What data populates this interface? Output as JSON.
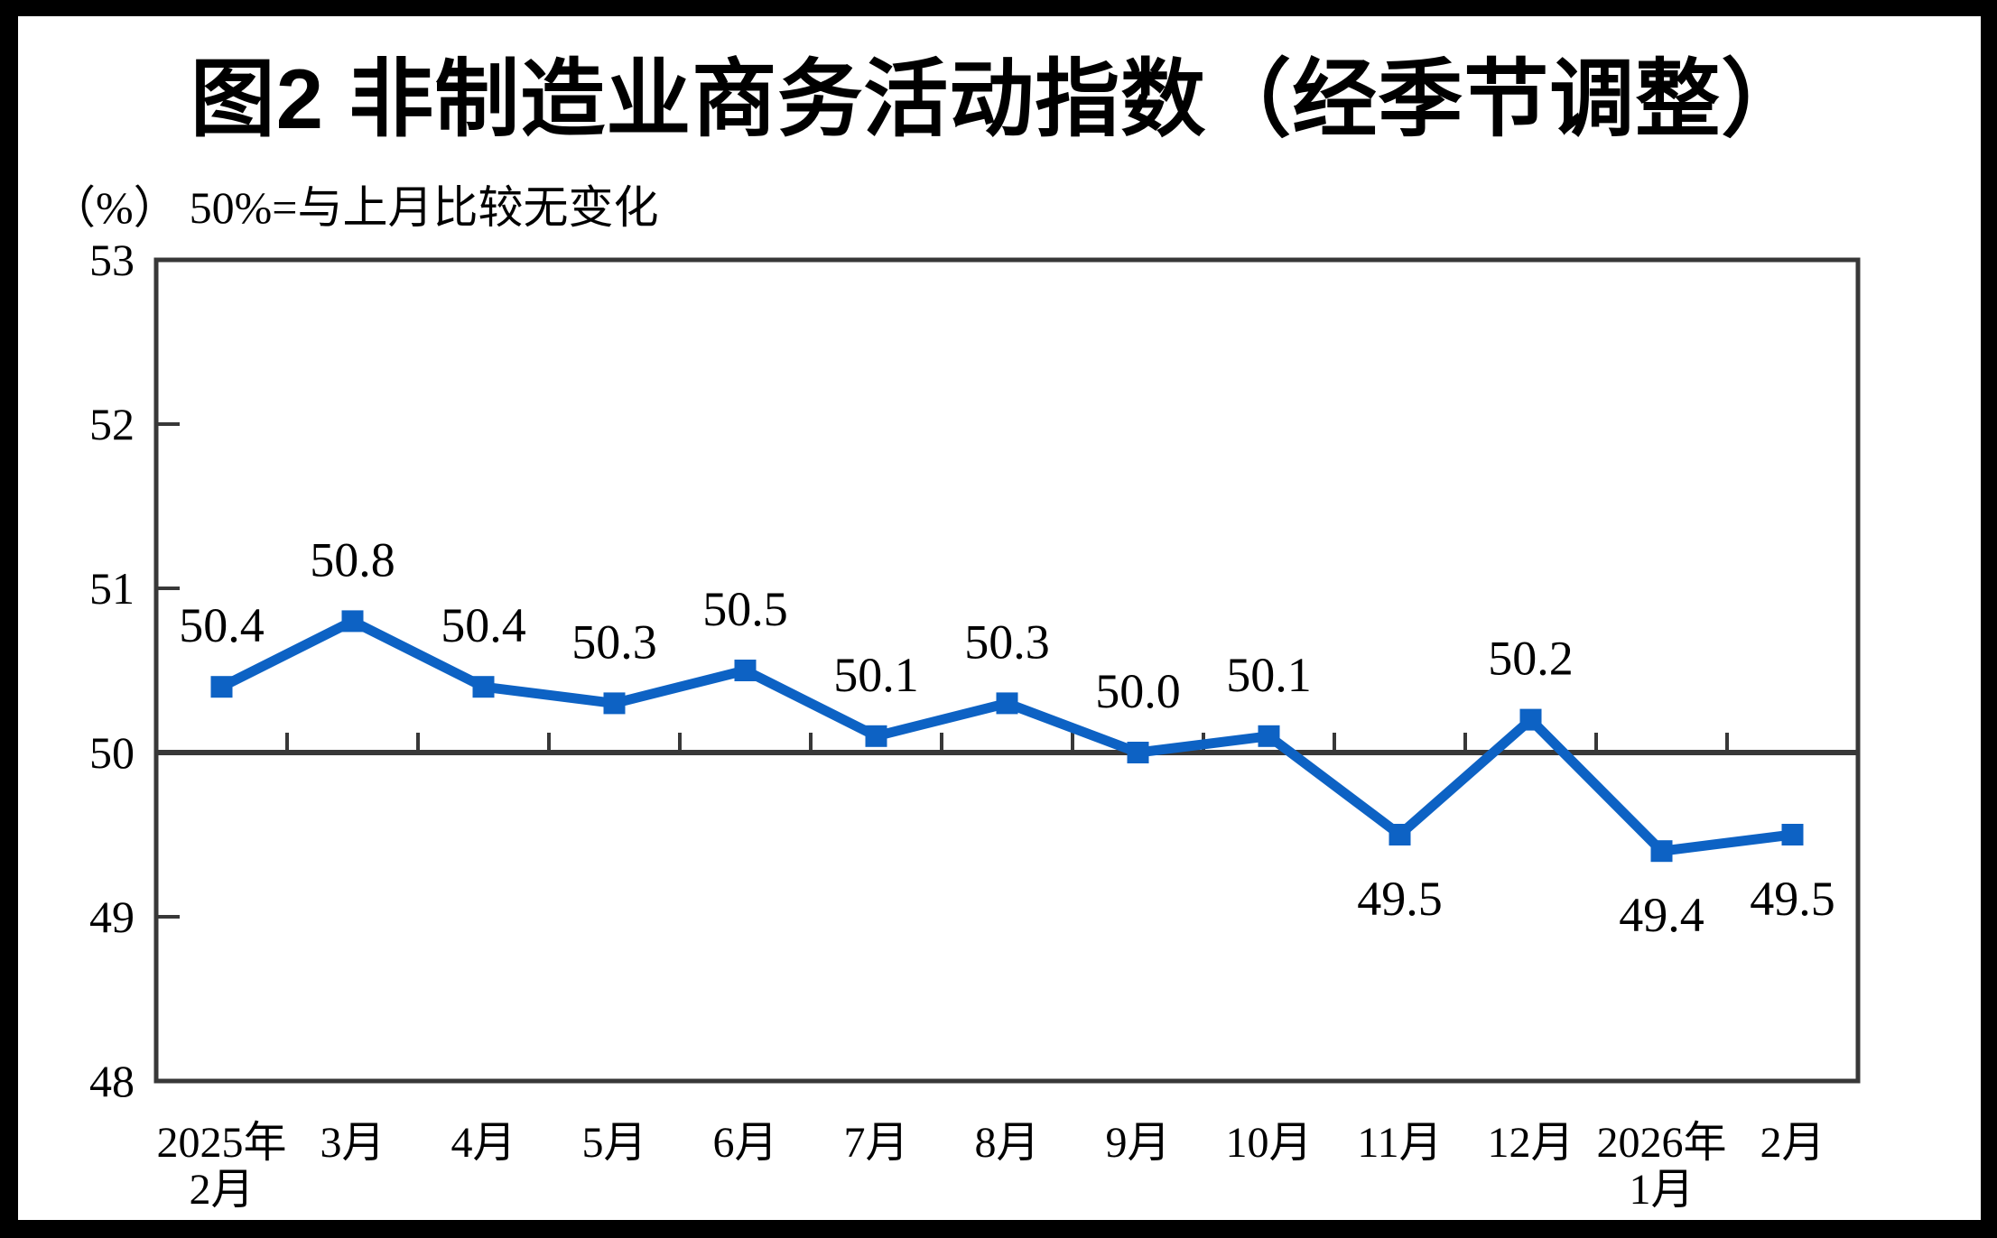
{
  "frame": {
    "border_color": "#000000",
    "background": "#ffffff"
  },
  "chart_data": {
    "type": "line",
    "title": "图2  非制造业商务活动指数（经季节调整）",
    "unit_label": "（%）",
    "reference_note": "50%=与上月比较无变化",
    "categories": [
      [
        "2025年",
        "2月"
      ],
      [
        "3月"
      ],
      [
        "4月"
      ],
      [
        "5月"
      ],
      [
        "6月"
      ],
      [
        "7月"
      ],
      [
        "8月"
      ],
      [
        "9月"
      ],
      [
        "10月"
      ],
      [
        "11月"
      ],
      [
        "12月"
      ],
      [
        "2026年",
        "1月"
      ],
      [
        "2月"
      ]
    ],
    "series": [
      {
        "name": "非制造业商务活动指数（经季节调整）",
        "values": [
          50.4,
          50.8,
          50.4,
          50.3,
          50.5,
          50.1,
          50.3,
          50.0,
          50.1,
          49.5,
          50.2,
          49.4,
          49.5
        ]
      }
    ],
    "data_labels": [
      "50.4",
      "50.8",
      "50.4",
      "50.3",
      "50.5",
      "50.1",
      "50.3",
      "50.0",
      "50.1",
      "49.5",
      "50.2",
      "49.4",
      "49.5"
    ],
    "label_positions": [
      "above",
      "above",
      "above",
      "above",
      "above",
      "above",
      "above",
      "above",
      "above",
      "below",
      "above",
      "below",
      "below"
    ],
    "ylim": [
      48,
      53
    ],
    "yticks": [
      53,
      52,
      51,
      50,
      49,
      48
    ],
    "reference_line": 50,
    "grid": false,
    "legend": "none",
    "marker": "square",
    "colors": {
      "line": "#0D62C4",
      "axis": "#383838",
      "text": "#000000"
    }
  }
}
